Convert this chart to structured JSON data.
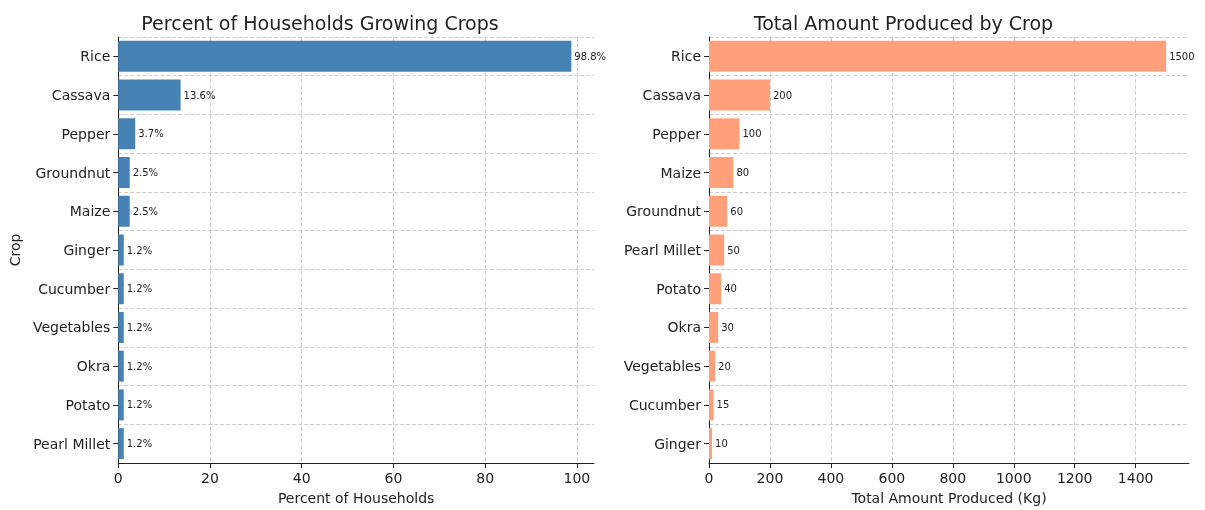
{
  "chart_data": [
    {
      "type": "bar",
      "orientation": "horizontal",
      "title": "Percent of Households Growing Crops",
      "xlabel": "Percent of Households",
      "ylabel": "Crop",
      "categories": [
        "Rice",
        "Cassava",
        "Pepper",
        "Groundnut",
        "Maize",
        "Ginger",
        "Cucumber",
        "Vegetables",
        "Okra",
        "Potato",
        "Pearl Millet"
      ],
      "values": [
        98.8,
        13.6,
        3.7,
        2.5,
        2.5,
        1.2,
        1.2,
        1.2,
        1.2,
        1.2,
        1.2
      ],
      "value_labels": [
        "98.8%",
        "13.6%",
        "3.7%",
        "2.5%",
        "2.5%",
        "1.2%",
        "1.2%",
        "1.2%",
        "1.2%",
        "1.2%",
        "1.2%"
      ],
      "color": "#4682b4",
      "xlim": [
        0,
        103.74
      ],
      "xticks": [
        0,
        20,
        40,
        60,
        80,
        100
      ],
      "grid": true
    },
    {
      "type": "bar",
      "orientation": "horizontal",
      "title": "Total Amount Produced by Crop",
      "xlabel": "Total Amount Produced (Kg)",
      "categories": [
        "Rice",
        "Cassava",
        "Pepper",
        "Maize",
        "Groundnut",
        "Pearl Millet",
        "Potato",
        "Okra",
        "Vegetables",
        "Cucumber",
        "Ginger"
      ],
      "values": [
        1500,
        200,
        100,
        80,
        60,
        50,
        40,
        30,
        20,
        15,
        10
      ],
      "data_labels": true,
      "color": "#ffa07a",
      "xlim": [
        0,
        1575
      ],
      "xticks": [
        0,
        200,
        400,
        600,
        800,
        1000,
        1200,
        1400
      ],
      "grid": true
    }
  ]
}
